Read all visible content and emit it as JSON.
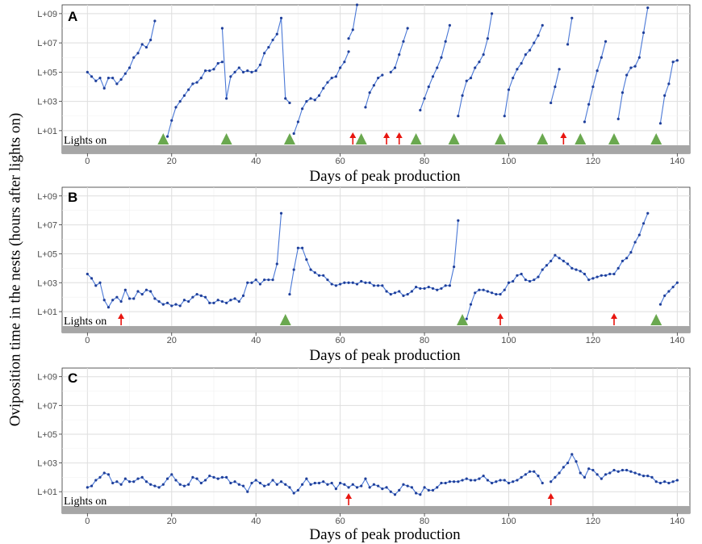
{
  "figure": {
    "ylabel": "Oviposition time in the nests (hours after lights on)",
    "lights_label": "Lights on",
    "line_color": "#4a78d6",
    "triangle_color": "#6aa84f",
    "arrow_color": "#e8150f",
    "bar_color": "#a6a6a6"
  },
  "chart_data": [
    {
      "type": "line",
      "panel": "A",
      "xlabel": "Days of peak production",
      "xlim": [
        -6,
        143
      ],
      "x_ticks": [
        0,
        20,
        40,
        60,
        80,
        100,
        120,
        140
      ],
      "ylim_log10": [
        0,
        9.6
      ],
      "y_tick_labels": [
        "L+01",
        "L+03",
        "L+05",
        "L+07",
        "L+09"
      ],
      "y_tick_log10": [
        1,
        3,
        5,
        7,
        9
      ],
      "series": [
        {
          "x": [
            0,
            1,
            2,
            3,
            4,
            5,
            6,
            7,
            8,
            9,
            10,
            11,
            12,
            13,
            14,
            15,
            16
          ],
          "log10y": [
            5.0,
            4.7,
            4.4,
            4.6,
            3.9,
            4.6,
            4.6,
            4.2,
            4.5,
            4.9,
            5.3,
            6.0,
            6.3,
            6.9,
            6.7,
            7.2,
            8.5
          ]
        },
        {
          "x": [
            19,
            20,
            21,
            22,
            23,
            24,
            25,
            26,
            27,
            28,
            29,
            30,
            31,
            32
          ],
          "log10y": [
            0.6,
            1.7,
            2.6,
            3.0,
            3.4,
            3.8,
            4.2,
            4.3,
            4.6,
            5.1,
            5.1,
            5.2,
            5.6,
            5.7
          ]
        },
        {
          "x": [
            32,
            33,
            34,
            35,
            36,
            37,
            38,
            39,
            40,
            41,
            42,
            43,
            44,
            45,
            46,
            47,
            48
          ],
          "log10y": [
            8.0,
            3.2,
            4.7,
            5.0,
            5.3,
            5.0,
            5.1,
            5.0,
            5.1,
            5.5,
            6.3,
            6.7,
            7.2,
            7.6,
            8.7,
            3.2,
            2.9
          ]
        },
        {
          "x": [
            49,
            50,
            51,
            52,
            53,
            54,
            55,
            56,
            57,
            58,
            59,
            60,
            61,
            62
          ],
          "log10y": [
            0.8,
            1.6,
            2.5,
            3.0,
            3.2,
            3.1,
            3.4,
            3.9,
            4.3,
            4.6,
            4.7,
            5.3,
            5.7,
            6.4
          ]
        },
        {
          "x": [
            62,
            63,
            64
          ],
          "log10y": [
            7.3,
            7.9,
            9.6
          ]
        },
        {
          "x": [
            66,
            67,
            68,
            69,
            70
          ],
          "log10y": [
            2.6,
            3.6,
            4.1,
            4.6,
            4.8
          ]
        },
        {
          "x": [
            72,
            73,
            74,
            75,
            76
          ],
          "log10y": [
            5.0,
            5.3,
            6.2,
            7.1,
            8.0
          ]
        },
        {
          "x": [
            79,
            80,
            81,
            82,
            83,
            84,
            85,
            86
          ],
          "log10y": [
            2.4,
            3.2,
            4.0,
            4.7,
            5.3,
            6.0,
            7.1,
            8.2
          ]
        },
        {
          "x": [
            88,
            89,
            90,
            91,
            92,
            93,
            94,
            95,
            96
          ],
          "log10y": [
            2.0,
            3.4,
            4.4,
            4.6,
            5.3,
            5.7,
            6.2,
            7.3,
            9.0
          ]
        },
        {
          "x": [
            99,
            100,
            101,
            102,
            103,
            104,
            105,
            106,
            107,
            108
          ],
          "log10y": [
            2.0,
            3.8,
            4.6,
            5.2,
            5.6,
            6.2,
            6.5,
            7.0,
            7.5,
            8.2
          ]
        },
        {
          "x": [
            110,
            111,
            112
          ],
          "log10y": [
            2.9,
            4.0,
            5.2
          ]
        },
        {
          "x": [
            114,
            115
          ],
          "log10y": [
            6.9,
            8.7
          ]
        },
        {
          "x": [
            118,
            119,
            120,
            121,
            122,
            123
          ],
          "log10y": [
            1.6,
            2.8,
            4.0,
            5.1,
            6.0,
            7.1
          ]
        },
        {
          "x": [
            126,
            127,
            128,
            129,
            130,
            131,
            132,
            133
          ],
          "log10y": [
            1.8,
            3.6,
            4.8,
            5.3,
            5.4,
            6.0,
            7.7,
            9.4
          ]
        },
        {
          "x": [
            136,
            137,
            138,
            139,
            140
          ],
          "log10y": [
            1.5,
            3.4,
            4.2,
            5.7,
            5.8
          ]
        }
      ],
      "triangles_x": [
        18,
        33,
        48,
        65,
        78,
        87,
        98,
        108,
        117,
        125,
        135
      ],
      "arrows_x": [
        63,
        71,
        74,
        113
      ]
    },
    {
      "type": "line",
      "panel": "B",
      "xlabel": "Days of peak production",
      "xlim": [
        -6,
        143
      ],
      "x_ticks": [
        0,
        20,
        40,
        60,
        80,
        100,
        120,
        140
      ],
      "ylim_log10": [
        0,
        9.6
      ],
      "y_tick_labels": [
        "L+01",
        "L+03",
        "L+05",
        "L+07",
        "L+09"
      ],
      "y_tick_log10": [
        1,
        3,
        5,
        7,
        9
      ],
      "series": [
        {
          "x": [
            0,
            1,
            2,
            3,
            4,
            5,
            6,
            7,
            8,
            9,
            10,
            11,
            12,
            13,
            14,
            15,
            16,
            17,
            18,
            19,
            20,
            21,
            22,
            23,
            24,
            25,
            26,
            27,
            28,
            29,
            30,
            31,
            32,
            33,
            34,
            35,
            36,
            37,
            38,
            39,
            40,
            41,
            42,
            43,
            44,
            45,
            46
          ],
          "log10y": [
            3.6,
            3.3,
            2.8,
            3.0,
            1.8,
            1.3,
            1.8,
            2.0,
            1.7,
            2.5,
            1.9,
            1.9,
            2.4,
            2.2,
            2.5,
            2.4,
            1.9,
            1.7,
            1.5,
            1.6,
            1.4,
            1.5,
            1.4,
            1.8,
            1.7,
            2.0,
            2.2,
            2.1,
            2.0,
            1.6,
            1.6,
            1.8,
            1.7,
            1.6,
            1.8,
            1.9,
            1.7,
            2.1,
            3.0,
            3.0,
            3.2,
            2.9,
            3.2,
            3.2,
            3.2,
            4.3,
            7.8
          ]
        },
        {
          "x": [
            48,
            49,
            50,
            51,
            52,
            53,
            54,
            55,
            56,
            57,
            58,
            59,
            60,
            61,
            62,
            63,
            64,
            65,
            66,
            67,
            68,
            69,
            70,
            71,
            72,
            73,
            74,
            75,
            76,
            77,
            78,
            79,
            80,
            81,
            82,
            83,
            84,
            85,
            86,
            87,
            88
          ],
          "log10y": [
            2.2,
            3.9,
            5.4,
            5.4,
            4.6,
            3.9,
            3.7,
            3.5,
            3.5,
            3.2,
            2.9,
            2.8,
            2.9,
            3.0,
            3.0,
            3.0,
            2.9,
            3.1,
            3.0,
            3.0,
            2.8,
            2.8,
            2.8,
            2.4,
            2.2,
            2.3,
            2.4,
            2.1,
            2.2,
            2.4,
            2.7,
            2.6,
            2.6,
            2.7,
            2.6,
            2.5,
            2.6,
            2.8,
            2.8,
            4.1,
            7.3
          ]
        },
        {
          "x": [
            90,
            91,
            92,
            93,
            94,
            95,
            96,
            97,
            98,
            99,
            100,
            101,
            102,
            103,
            104,
            105,
            106,
            107,
            108,
            109,
            110,
            111,
            112,
            113,
            114,
            115,
            116,
            117,
            118,
            119,
            120,
            121,
            122,
            123,
            124,
            125,
            126,
            127,
            128,
            129,
            130,
            131,
            132,
            133
          ],
          "log10y": [
            0.5,
            1.5,
            2.3,
            2.5,
            2.5,
            2.4,
            2.3,
            2.2,
            2.2,
            2.5,
            3.0,
            3.1,
            3.5,
            3.6,
            3.2,
            3.1,
            3.2,
            3.4,
            3.9,
            4.2,
            4.5,
            4.9,
            4.7,
            4.5,
            4.3,
            4.0,
            3.9,
            3.8,
            3.6,
            3.2,
            3.3,
            3.4,
            3.5,
            3.5,
            3.6,
            3.6,
            4.0,
            4.5,
            4.7,
            5.1,
            5.8,
            6.3,
            7.1,
            7.8
          ]
        },
        {
          "x": [
            136,
            137,
            138,
            139,
            140
          ],
          "log10y": [
            1.5,
            2.1,
            2.4,
            2.7,
            3.0
          ]
        }
      ],
      "triangles_x": [
        47,
        89,
        135
      ],
      "arrows_x": [
        8,
        98,
        125
      ]
    },
    {
      "type": "line",
      "panel": "C",
      "xlabel": "Days of peak production",
      "xlim": [
        -6,
        143
      ],
      "x_ticks": [
        0,
        20,
        40,
        60,
        80,
        100,
        120,
        140
      ],
      "ylim_log10": [
        0,
        9.6
      ],
      "y_tick_labels": [
        "L+01",
        "L+03",
        "L+05",
        "L+07",
        "L+09"
      ],
      "y_tick_log10": [
        1,
        3,
        5,
        7,
        9
      ],
      "series": [
        {
          "x": [
            0,
            1,
            2,
            3,
            4,
            5,
            6,
            7,
            8,
            9,
            10,
            11,
            12,
            13,
            14,
            15,
            16,
            17,
            18,
            19,
            20,
            21,
            22,
            23,
            24,
            25,
            26,
            27,
            28,
            29,
            30,
            31,
            32,
            33,
            34,
            35,
            36,
            37,
            38,
            39,
            40,
            41,
            42,
            43,
            44,
            45,
            46,
            47,
            48,
            49,
            50,
            51,
            52,
            53,
            54,
            55,
            56,
            57,
            58,
            59,
            60,
            61,
            62,
            63,
            64,
            65,
            66,
            67,
            68,
            69,
            70,
            71,
            72,
            73,
            74,
            75,
            76,
            77,
            78,
            79,
            80,
            81,
            82,
            83,
            84,
            85,
            86,
            87,
            88,
            89,
            90,
            91,
            92,
            93,
            94,
            95,
            96,
            97,
            98,
            99,
            100,
            101,
            102,
            103,
            104,
            105,
            106,
            107,
            108
          ],
          "log10y": [
            1.3,
            1.4,
            1.8,
            2.0,
            2.3,
            2.2,
            1.6,
            1.7,
            1.5,
            1.9,
            1.7,
            1.7,
            1.9,
            2.0,
            1.7,
            1.5,
            1.4,
            1.3,
            1.5,
            1.9,
            2.2,
            1.8,
            1.5,
            1.4,
            1.5,
            2.0,
            1.9,
            1.6,
            1.8,
            2.1,
            2.0,
            1.9,
            2.0,
            2.0,
            1.6,
            1.7,
            1.5,
            1.4,
            1.0,
            1.6,
            1.8,
            1.6,
            1.4,
            1.5,
            1.8,
            1.5,
            1.7,
            1.5,
            1.3,
            0.9,
            1.1,
            1.5,
            1.9,
            1.5,
            1.6,
            1.6,
            1.7,
            1.5,
            1.6,
            1.2,
            1.6,
            1.5,
            1.3,
            1.5,
            1.3,
            1.4,
            1.9,
            1.3,
            1.5,
            1.4,
            1.2,
            1.3,
            1.0,
            0.8,
            1.1,
            1.5,
            1.4,
            1.3,
            0.9,
            0.8,
            1.3,
            1.1,
            1.1,
            1.3,
            1.6,
            1.6,
            1.7,
            1.7,
            1.7,
            1.8,
            1.9,
            1.8,
            1.8,
            1.9,
            2.1,
            1.8,
            1.6,
            1.7,
            1.8,
            1.8,
            1.6,
            1.7,
            1.8,
            2.0,
            2.2,
            2.4,
            2.4,
            2.1,
            1.6
          ]
        },
        {
          "x": [
            110,
            111,
            112,
            113,
            114,
            115,
            116,
            117,
            118,
            119,
            120,
            121,
            122,
            123,
            124,
            125,
            126,
            127,
            128,
            129,
            130,
            131,
            132,
            133,
            134,
            135,
            136,
            137,
            138,
            139,
            140
          ],
          "log10y": [
            1.7,
            2.0,
            2.3,
            2.7,
            3.0,
            3.6,
            3.1,
            2.3,
            2.0,
            2.6,
            2.5,
            2.2,
            1.9,
            2.2,
            2.3,
            2.5,
            2.4,
            2.5,
            2.5,
            2.4,
            2.3,
            2.2,
            2.1,
            2.1,
            2.0,
            1.7,
            1.6,
            1.7,
            1.6,
            1.7,
            1.8
          ]
        }
      ],
      "triangles_x": [],
      "arrows_x": [
        62,
        110
      ]
    }
  ]
}
